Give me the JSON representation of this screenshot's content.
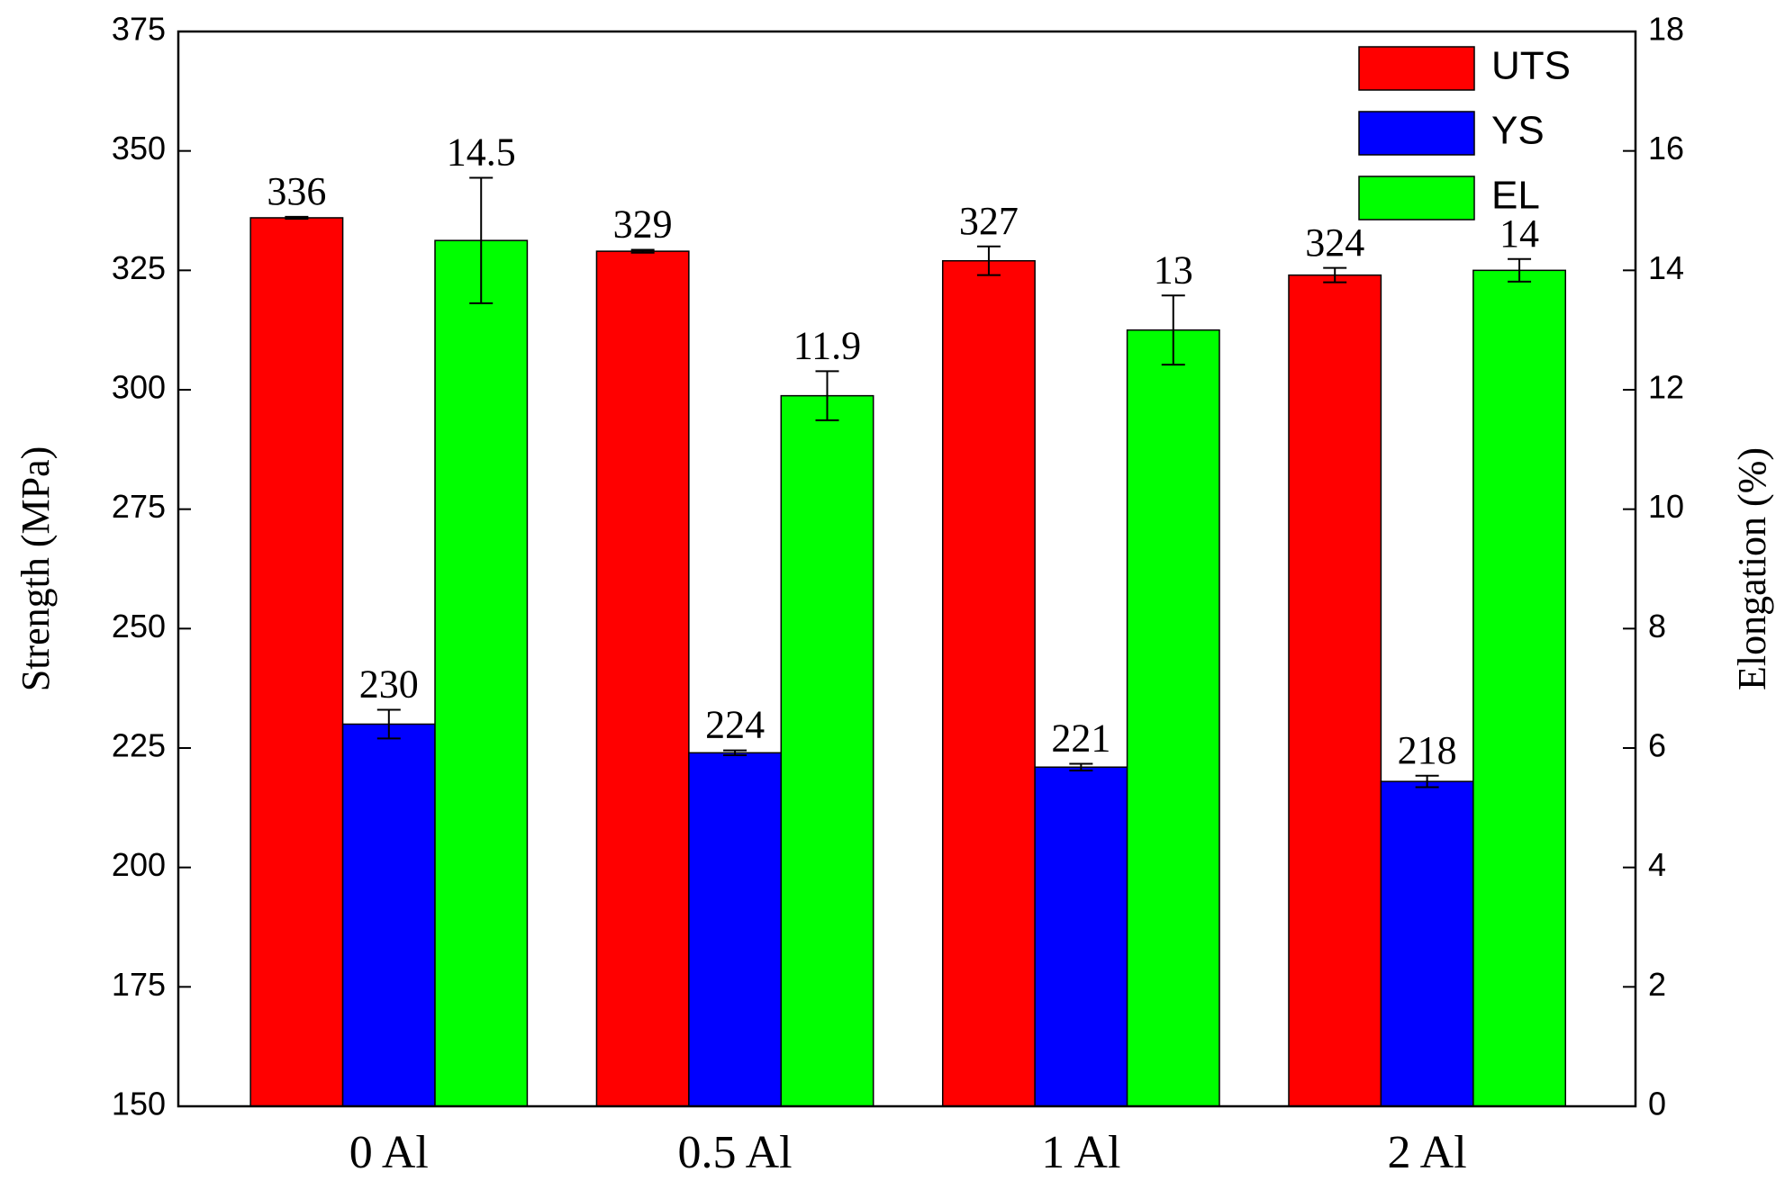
{
  "chart_data": {
    "type": "bar",
    "categories": [
      "0 Al",
      "0.5 Al",
      "1 Al",
      "2 Al"
    ],
    "series": [
      {
        "name": "UTS",
        "color": "#ff0000",
        "values": [
          336,
          329,
          327,
          324
        ],
        "errors": [
          0.2,
          0.3,
          3,
          1.5
        ]
      },
      {
        "name": "YS",
        "color": "#0000ff",
        "values": [
          230,
          224,
          221,
          218
        ],
        "errors": [
          3,
          0.5,
          0.7,
          1.2
        ]
      },
      {
        "name": "EL",
        "color": "#00ff00",
        "axis": "y2",
        "values": [
          14.5,
          11.9,
          13,
          14
        ],
        "errors": [
          1.05,
          0.41,
          0.58,
          0.19
        ]
      }
    ],
    "y_label": "Strength (MPa)",
    "y2_label": "Elongation (%)",
    "ylim": [
      150,
      375
    ],
    "yticks": [
      150,
      175,
      200,
      225,
      250,
      275,
      300,
      325,
      350,
      375
    ],
    "y2lim": [
      0,
      18
    ],
    "y2ticks": [
      0,
      2,
      4,
      6,
      8,
      10,
      12,
      14,
      16,
      18
    ],
    "legend": "upper right",
    "grid": false
  }
}
